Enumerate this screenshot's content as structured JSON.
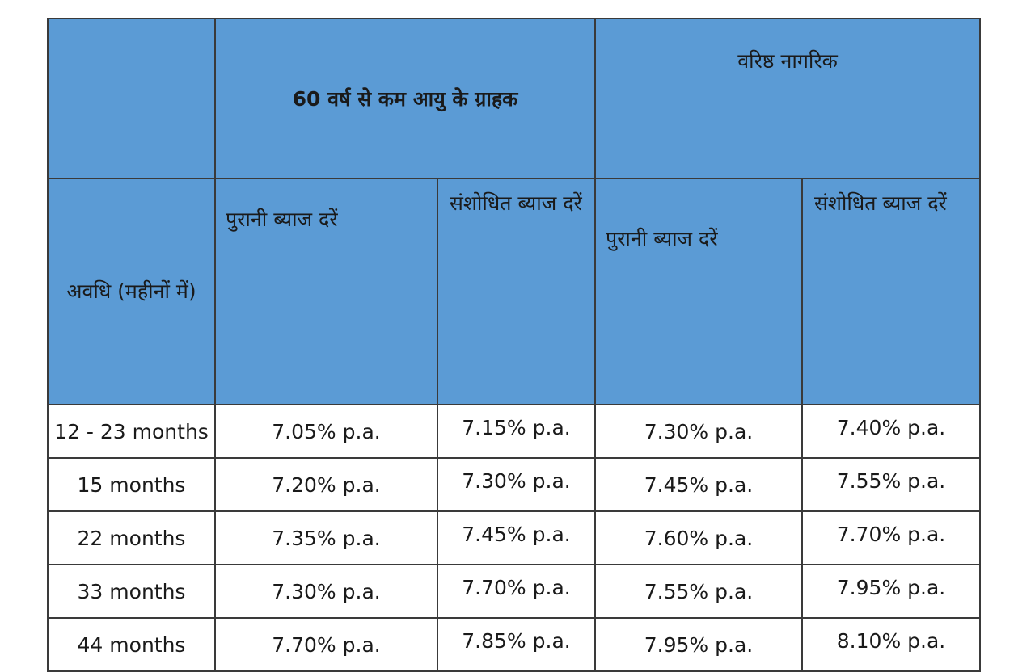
{
  "header": {
    "general_group": "60 वर्ष से कम आयु के ग्राहक",
    "senior_group": "वरिष्ठ नागरिक",
    "duration": "अवधि (महीनों में)",
    "old_rates": "पुरानी ब्याज दरें",
    "revised_rates": "संशोधित ब्याज दरें"
  },
  "rows": [
    {
      "duration": "12 - 23 months",
      "general_old": "7.05% p.a.",
      "general_new": "7.15% p.a.",
      "senior_old": "7.30% p.a.",
      "senior_new": "7.40% p.a."
    },
    {
      "duration": "15 months",
      "general_old": "7.20% p.a.",
      "general_new": "7.30% p.a.",
      "senior_old": "7.45% p.a.",
      "senior_new": "7.55% p.a."
    },
    {
      "duration": "22 months",
      "general_old": "7.35% p.a.",
      "general_new": "7.45% p.a.",
      "senior_old": "7.60% p.a.",
      "senior_new": "7.70% p.a."
    },
    {
      "duration": "33 months",
      "general_old": "7.30% p.a.",
      "general_new": "7.70% p.a.",
      "senior_old": "7.55% p.a.",
      "senior_new": "7.95% p.a."
    },
    {
      "duration": "44 months",
      "general_old": "7.70% p.a.",
      "general_new": "7.85% p.a.",
      "senior_old": "7.95% p.a.",
      "senior_new": "8.10% p.a."
    }
  ],
  "colors": {
    "header_bg": "#5b9bd5",
    "border": "#3a3a3a"
  }
}
